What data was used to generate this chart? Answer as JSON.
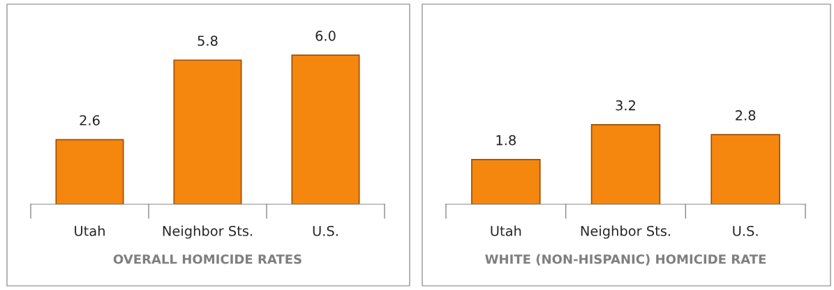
{
  "chart_data": [
    {
      "type": "bar",
      "title": "OVERALL HOMICIDE RATES",
      "categories": [
        "Utah",
        "Neighbor Sts.",
        "U.S."
      ],
      "values": [
        2.6,
        5.8,
        6.0
      ],
      "value_labels": [
        "2.6",
        "5.8",
        "6.0"
      ],
      "color": "#f5870f",
      "grid": false,
      "legend": false
    },
    {
      "type": "bar",
      "title": "WHITE (NON-HISPANIC) HOMICIDE RATE",
      "categories": [
        "Utah",
        "Neighbor Sts.",
        "U.S."
      ],
      "values": [
        1.8,
        3.2,
        2.8
      ],
      "value_labels": [
        "1.8",
        "3.2",
        "2.8"
      ],
      "color": "#f5870f",
      "grid": false,
      "legend": false
    }
  ]
}
